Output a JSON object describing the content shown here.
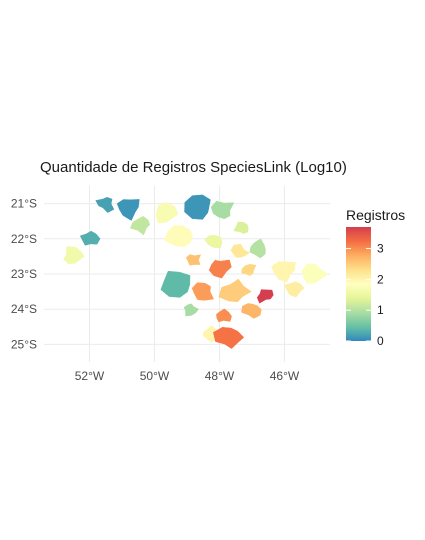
{
  "map": {
    "title": "Quantidade de Registros SpeciesLink (Log10)",
    "x_ticks": [
      "52°W",
      "50°W",
      "48°W",
      "46°W"
    ],
    "y_ticks": [
      "21°S",
      "22°S",
      "23°S",
      "24°S",
      "25°S"
    ],
    "x_tick_values": [
      -52,
      -50,
      -48,
      -46
    ],
    "y_tick_values": [
      -21,
      -22,
      -23,
      -24,
      -25
    ],
    "lon_range": [
      -53.4,
      -44.6
    ],
    "lat_range": [
      -25.5,
      -20.5
    ],
    "legend": {
      "title": "Registros",
      "ticks": [
        "0",
        "1",
        "2",
        "3"
      ],
      "tick_values": [
        0,
        1,
        2,
        3
      ],
      "value_range": [
        0,
        3.7
      ],
      "colors": [
        "#3288bd",
        "#66c2a5",
        "#abdda4",
        "#e6f598",
        "#ffffbf",
        "#fee08b",
        "#fdae61",
        "#f46d43",
        "#d53e4f"
      ]
    }
  },
  "chart_data": {
    "type": "heatmap",
    "title": "Quantidade de Registros SpeciesLink (Log10)",
    "xlabel": "",
    "ylabel": "",
    "fill_label": "Registros",
    "xlim": [
      -53.4,
      -44.6
    ],
    "ylim": [
      -25.5,
      -20.5
    ],
    "fill_range": [
      0,
      3.7
    ],
    "regions": [
      {
        "lon": -52.5,
        "lat": -22.5,
        "value": 1.6
      },
      {
        "lon": -52.0,
        "lat": -22.0,
        "value": 0.3
      },
      {
        "lon": -51.5,
        "lat": -21.0,
        "value": 0.2
      },
      {
        "lon": -50.8,
        "lat": -21.1,
        "value": 0.1
      },
      {
        "lon": -50.4,
        "lat": -21.6,
        "value": 1.1
      },
      {
        "lon": -49.7,
        "lat": -21.3,
        "value": 1.7
      },
      {
        "lon": -49.2,
        "lat": -21.9,
        "value": 1.9
      },
      {
        "lon": -48.6,
        "lat": -21.1,
        "value": 0.1
      },
      {
        "lon": -47.9,
        "lat": -21.2,
        "value": 0.9
      },
      {
        "lon": -47.3,
        "lat": -21.7,
        "value": 1.3
      },
      {
        "lon": -48.2,
        "lat": -22.1,
        "value": 1.5
      },
      {
        "lon": -47.4,
        "lat": -22.4,
        "value": 2.2
      },
      {
        "lon": -46.8,
        "lat": -22.3,
        "value": 1.0
      },
      {
        "lon": -48.8,
        "lat": -22.6,
        "value": 2.6
      },
      {
        "lon": -48.0,
        "lat": -22.8,
        "value": 3.1
      },
      {
        "lon": -47.1,
        "lat": -22.9,
        "value": 2.4
      },
      {
        "lon": -46.0,
        "lat": -22.9,
        "value": 2.0
      },
      {
        "lon": -49.3,
        "lat": -23.3,
        "value": 0.4
      },
      {
        "lon": -48.5,
        "lat": -23.5,
        "value": 2.9
      },
      {
        "lon": -47.5,
        "lat": -23.5,
        "value": 2.5
      },
      {
        "lon": -46.6,
        "lat": -23.6,
        "value": 3.7
      },
      {
        "lon": -45.7,
        "lat": -23.4,
        "value": 2.1
      },
      {
        "lon": -45.1,
        "lat": -23.0,
        "value": 1.8
      },
      {
        "lon": -48.9,
        "lat": -24.0,
        "value": 0.9
      },
      {
        "lon": -47.9,
        "lat": -24.2,
        "value": 3.0
      },
      {
        "lon": -47.0,
        "lat": -24.0,
        "value": 2.7
      },
      {
        "lon": -48.3,
        "lat": -24.7,
        "value": 2.0
      },
      {
        "lon": -47.7,
        "lat": -24.8,
        "value": 3.2
      }
    ]
  }
}
